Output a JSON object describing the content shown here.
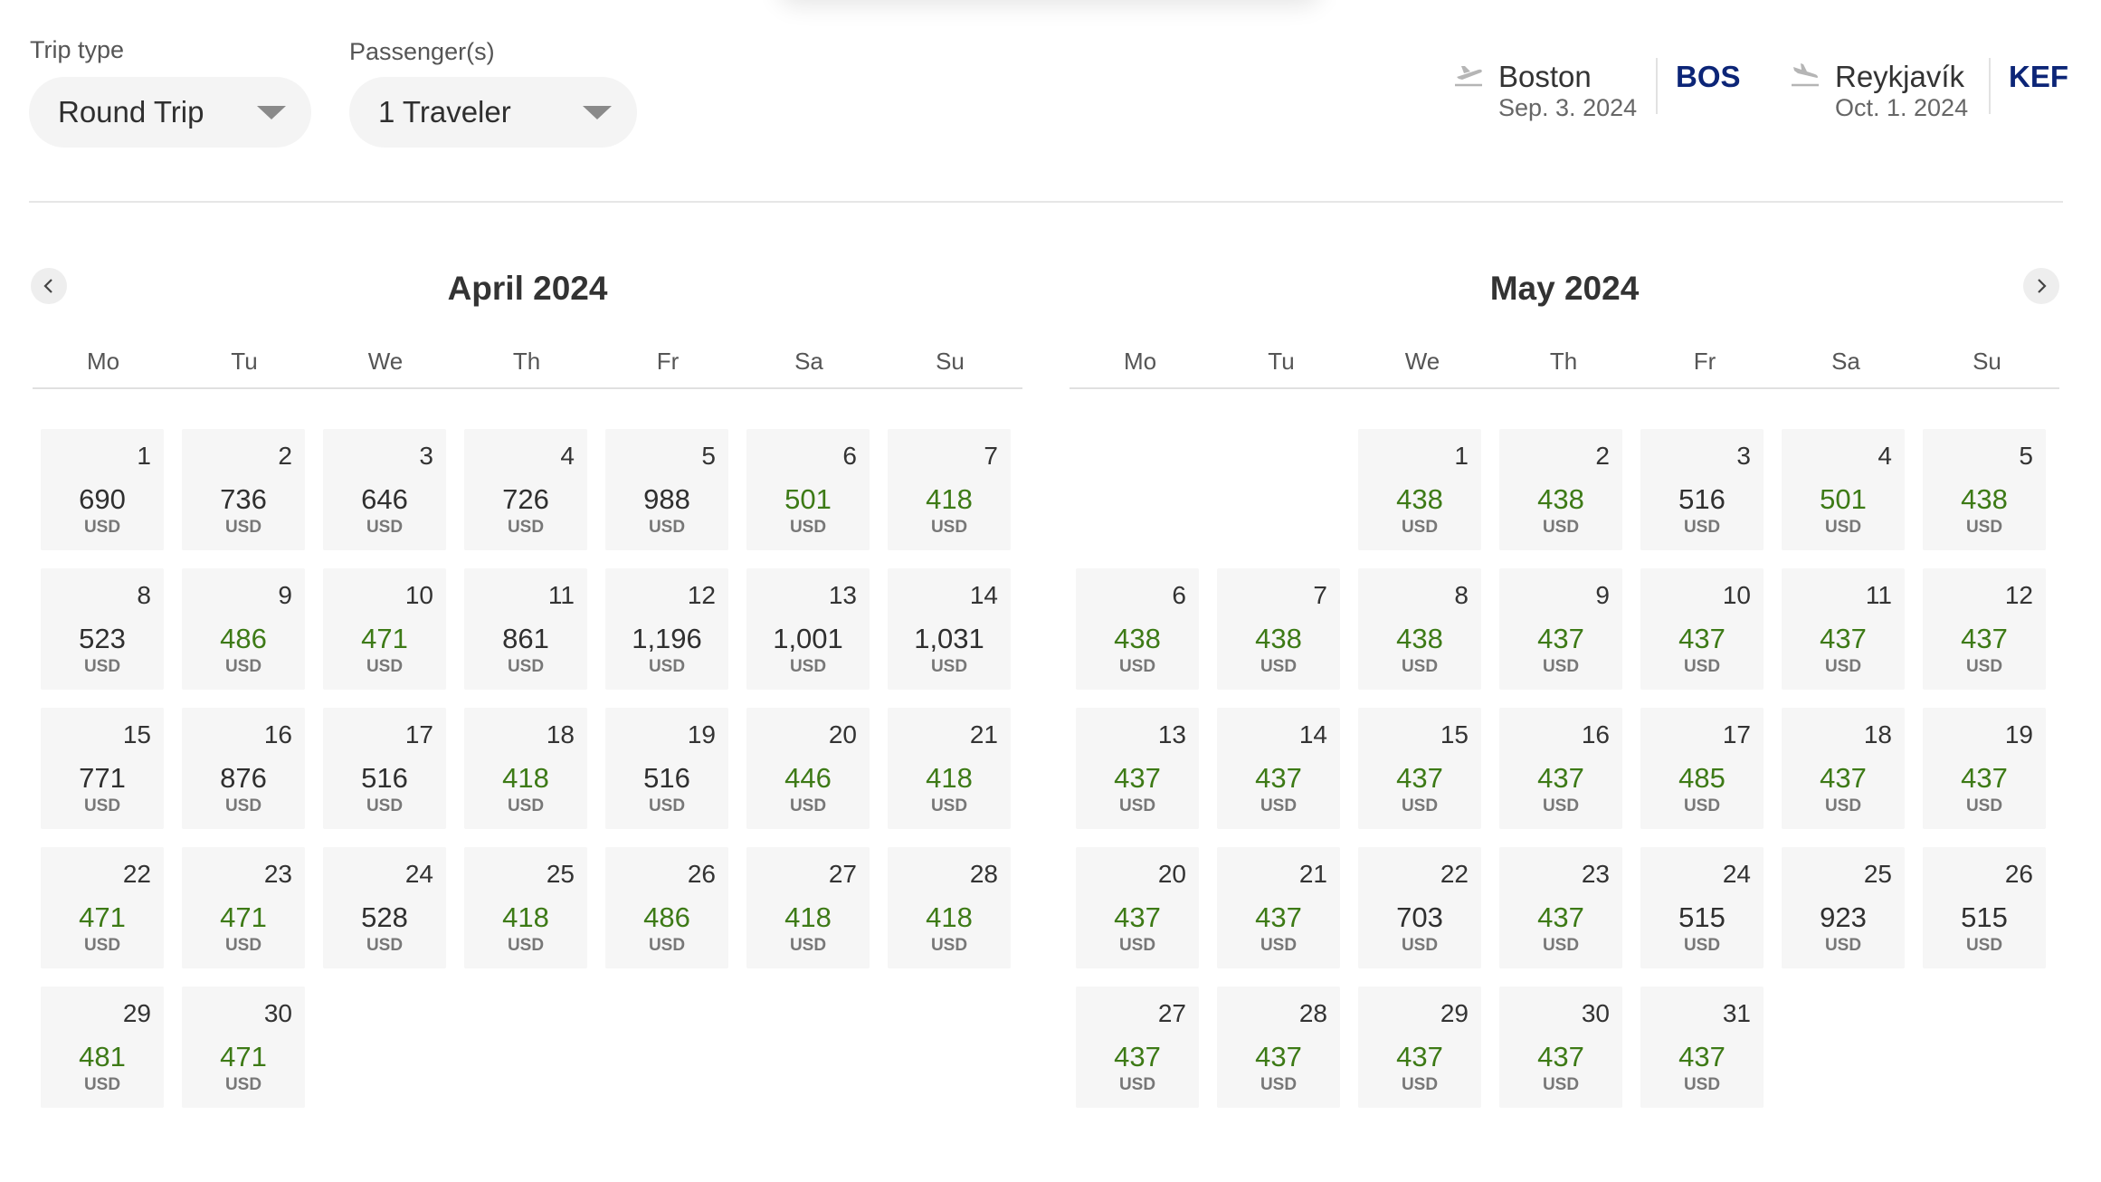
{
  "trip_type": {
    "label": "Trip type",
    "value": "Round Trip"
  },
  "passengers": {
    "label": "Passenger(s)",
    "value": "1 Traveler"
  },
  "outbound": {
    "city": "Boston",
    "date": "Sep. 3. 2024",
    "code": "BOS",
    "icon": "plane-departure-icon"
  },
  "inbound": {
    "city": "Reykjavík",
    "date": "Oct. 1. 2024",
    "code": "KEF",
    "icon": "plane-arrival-icon"
  },
  "colors": {
    "low_price": "#3d7a16",
    "normal_price": "#2f2f2f",
    "airport_code": "#0c2577",
    "cell_bg": "#f6f6f6"
  },
  "weekdays": [
    "Mo",
    "Tu",
    "We",
    "Th",
    "Fr",
    "Sa",
    "Su"
  ],
  "months": [
    {
      "title": "April 2024",
      "start_offset": 0,
      "days": [
        {
          "day": "1",
          "price": "690",
          "low": false
        },
        {
          "day": "2",
          "price": "736",
          "low": false
        },
        {
          "day": "3",
          "price": "646",
          "low": false
        },
        {
          "day": "4",
          "price": "726",
          "low": false
        },
        {
          "day": "5",
          "price": "988",
          "low": false
        },
        {
          "day": "6",
          "price": "501",
          "low": true
        },
        {
          "day": "7",
          "price": "418",
          "low": true
        },
        {
          "day": "8",
          "price": "523",
          "low": false
        },
        {
          "day": "9",
          "price": "486",
          "low": true
        },
        {
          "day": "10",
          "price": "471",
          "low": true
        },
        {
          "day": "11",
          "price": "861",
          "low": false
        },
        {
          "day": "12",
          "price": "1,196",
          "low": false
        },
        {
          "day": "13",
          "price": "1,001",
          "low": false
        },
        {
          "day": "14",
          "price": "1,031",
          "low": false
        },
        {
          "day": "15",
          "price": "771",
          "low": false
        },
        {
          "day": "16",
          "price": "876",
          "low": false
        },
        {
          "day": "17",
          "price": "516",
          "low": false
        },
        {
          "day": "18",
          "price": "418",
          "low": true
        },
        {
          "day": "19",
          "price": "516",
          "low": false
        },
        {
          "day": "20",
          "price": "446",
          "low": true
        },
        {
          "day": "21",
          "price": "418",
          "low": true
        },
        {
          "day": "22",
          "price": "471",
          "low": true
        },
        {
          "day": "23",
          "price": "471",
          "low": true
        },
        {
          "day": "24",
          "price": "528",
          "low": false
        },
        {
          "day": "25",
          "price": "418",
          "low": true
        },
        {
          "day": "26",
          "price": "486",
          "low": true
        },
        {
          "day": "27",
          "price": "418",
          "low": true
        },
        {
          "day": "28",
          "price": "418",
          "low": true
        },
        {
          "day": "29",
          "price": "481",
          "low": true
        },
        {
          "day": "30",
          "price": "471",
          "low": true
        }
      ]
    },
    {
      "title": "May 2024",
      "start_offset": 2,
      "days": [
        {
          "day": "1",
          "price": "438",
          "low": true
        },
        {
          "day": "2",
          "price": "438",
          "low": true
        },
        {
          "day": "3",
          "price": "516",
          "low": false
        },
        {
          "day": "4",
          "price": "501",
          "low": true
        },
        {
          "day": "5",
          "price": "438",
          "low": true
        },
        {
          "day": "6",
          "price": "438",
          "low": true
        },
        {
          "day": "7",
          "price": "438",
          "low": true
        },
        {
          "day": "8",
          "price": "438",
          "low": true
        },
        {
          "day": "9",
          "price": "437",
          "low": true
        },
        {
          "day": "10",
          "price": "437",
          "low": true
        },
        {
          "day": "11",
          "price": "437",
          "low": true
        },
        {
          "day": "12",
          "price": "437",
          "low": true
        },
        {
          "day": "13",
          "price": "437",
          "low": true
        },
        {
          "day": "14",
          "price": "437",
          "low": true
        },
        {
          "day": "15",
          "price": "437",
          "low": true
        },
        {
          "day": "16",
          "price": "437",
          "low": true
        },
        {
          "day": "17",
          "price": "485",
          "low": true
        },
        {
          "day": "18",
          "price": "437",
          "low": true
        },
        {
          "day": "19",
          "price": "437",
          "low": true
        },
        {
          "day": "20",
          "price": "437",
          "low": true
        },
        {
          "day": "21",
          "price": "437",
          "low": true
        },
        {
          "day": "22",
          "price": "703",
          "low": false
        },
        {
          "day": "23",
          "price": "437",
          "low": true
        },
        {
          "day": "24",
          "price": "515",
          "low": false
        },
        {
          "day": "25",
          "price": "923",
          "low": false
        },
        {
          "day": "26",
          "price": "515",
          "low": false
        },
        {
          "day": "27",
          "price": "437",
          "low": true
        },
        {
          "day": "28",
          "price": "437",
          "low": true
        },
        {
          "day": "29",
          "price": "437",
          "low": true
        },
        {
          "day": "30",
          "price": "437",
          "low": true
        },
        {
          "day": "31",
          "price": "437",
          "low": true
        }
      ]
    }
  ],
  "currency": "USD"
}
